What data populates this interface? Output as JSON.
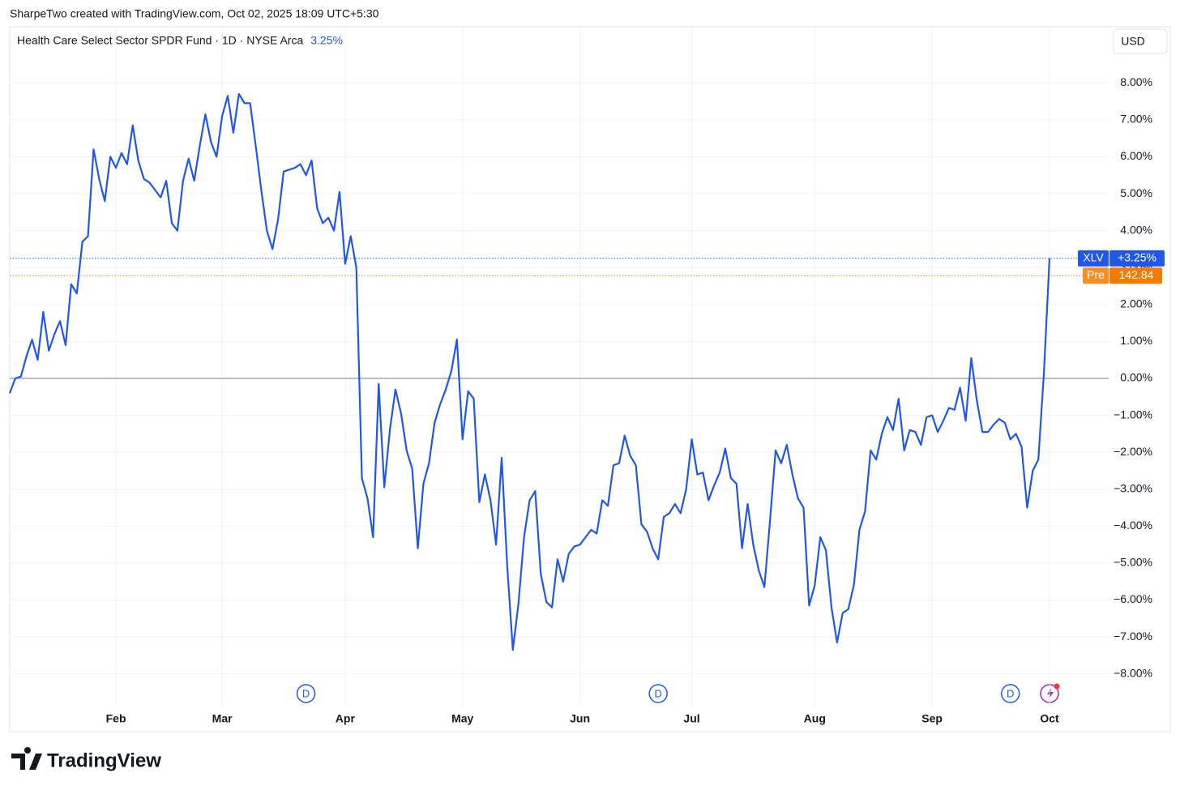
{
  "chart_data": {
    "type": "line",
    "caption": "SharpeTwo created with TradingView.com, Oct 02, 2025 18:09 UTC+5:30",
    "title": "Health Care Select Sector SPDR Fund · 1D · NYSE Arca",
    "change": {
      "value": 3.25,
      "label": "3.25%"
    },
    "currency": "USD",
    "brand": "TradingView",
    "categories": [
      null,
      null,
      null,
      null,
      null,
      null,
      null,
      null,
      null,
      null,
      null,
      null,
      null,
      null,
      null,
      null,
      null,
      null,
      null,
      "Feb",
      null,
      null,
      null,
      null,
      null,
      null,
      null,
      null,
      null,
      null,
      null,
      null,
      null,
      null,
      null,
      null,
      null,
      null,
      "Mar",
      null,
      null,
      null,
      null,
      null,
      null,
      null,
      null,
      null,
      null,
      null,
      null,
      null,
      null,
      null,
      null,
      null,
      null,
      null,
      null,
      null,
      "Apr",
      null,
      null,
      null,
      null,
      null,
      null,
      null,
      null,
      null,
      null,
      null,
      null,
      null,
      null,
      null,
      null,
      null,
      null,
      null,
      null,
      "May",
      null,
      null,
      null,
      null,
      null,
      null,
      null,
      null,
      null,
      null,
      null,
      null,
      null,
      null,
      null,
      null,
      null,
      null,
      null,
      null,
      "Jun",
      null,
      null,
      null,
      null,
      null,
      null,
      null,
      null,
      null,
      null,
      null,
      null,
      null,
      null,
      null,
      null,
      null,
      null,
      null,
      "Jul",
      null,
      null,
      null,
      null,
      null,
      null,
      null,
      null,
      null,
      null,
      null,
      null,
      null,
      null,
      null,
      null,
      null,
      null,
      null,
      null,
      null,
      "Aug",
      null,
      null,
      null,
      null,
      null,
      null,
      null,
      null,
      null,
      null,
      null,
      null,
      null,
      null,
      null,
      null,
      null,
      null,
      null,
      null,
      "Sep",
      null,
      null,
      null,
      null,
      null,
      null,
      null,
      null,
      null,
      null,
      null,
      null,
      null,
      null,
      null,
      null,
      null,
      null,
      null,
      null,
      "Oct"
    ],
    "series": [
      {
        "name": "XLV",
        "color": "#2157e6",
        "values": [
          -0.4,
          0.0,
          0.05,
          0.6,
          1.05,
          0.5,
          1.8,
          0.75,
          1.2,
          1.55,
          0.9,
          2.55,
          2.3,
          3.7,
          3.85,
          6.2,
          5.4,
          4.8,
          6.0,
          5.7,
          6.1,
          5.8,
          6.85,
          5.9,
          5.4,
          5.3,
          5.1,
          4.9,
          5.35,
          4.2,
          4.0,
          5.35,
          5.95,
          5.35,
          6.3,
          7.15,
          6.4,
          6.0,
          7.1,
          7.65,
          6.65,
          7.7,
          7.45,
          7.45,
          6.3,
          5.1,
          4.0,
          3.5,
          4.3,
          5.6,
          5.65,
          5.7,
          5.8,
          5.5,
          5.9,
          4.6,
          4.2,
          4.35,
          4.0,
          5.05,
          3.1,
          3.85,
          3.0,
          -2.7,
          -3.25,
          -4.3,
          -0.15,
          -2.95,
          -1.4,
          -0.3,
          -0.95,
          -1.95,
          -2.45,
          -4.6,
          -2.85,
          -2.3,
          -1.2,
          -0.7,
          -0.3,
          0.2,
          1.05,
          -1.65,
          -0.35,
          -0.55,
          -3.35,
          -2.6,
          -3.3,
          -4.5,
          -2.15,
          -5.1,
          -7.35,
          -6.1,
          -4.3,
          -3.3,
          -3.05,
          -5.3,
          -6.05,
          -6.2,
          -4.9,
          -5.5,
          -4.75,
          -4.55,
          -4.5,
          -4.3,
          -4.1,
          -4.2,
          -3.3,
          -3.45,
          -2.35,
          -2.3,
          -1.55,
          -2.1,
          -2.35,
          -3.95,
          -4.15,
          -4.6,
          -4.9,
          -3.75,
          -3.65,
          -3.4,
          -3.65,
          -3.0,
          -1.65,
          -2.6,
          -2.55,
          -3.3,
          -2.9,
          -2.55,
          -1.9,
          -2.7,
          -2.85,
          -4.6,
          -3.4,
          -4.5,
          -5.2,
          -5.65,
          -3.85,
          -1.95,
          -2.3,
          -1.8,
          -2.6,
          -3.25,
          -3.5,
          -6.15,
          -5.6,
          -4.3,
          -4.65,
          -6.2,
          -7.15,
          -6.35,
          -6.25,
          -5.6,
          -4.1,
          -3.6,
          -1.95,
          -2.2,
          -1.5,
          -1.05,
          -1.4,
          -0.55,
          -1.95,
          -1.4,
          -1.45,
          -1.8,
          -1.05,
          -1.0,
          -1.45,
          -1.15,
          -0.8,
          -0.85,
          -0.25,
          -1.15,
          0.55,
          -0.6,
          -1.45,
          -1.45,
          -1.25,
          -1.1,
          -1.2,
          -1.65,
          -1.5,
          -1.85,
          -3.5,
          -2.5,
          -2.2,
          0.15,
          3.25
        ],
        "last_value_label": {
          "value": 3.25,
          "label": "+3.25%"
        }
      }
    ],
    "pre_market": {
      "name": "Pre",
      "color": "#f57c00",
      "price_label": "142.84",
      "pct_change": 2.78
    },
    "events": [
      {
        "label": "D",
        "index": 53
      },
      {
        "label": "D",
        "index": 116
      },
      {
        "label": "D",
        "index": 179
      }
    ],
    "baseline": 0,
    "ylim": [
      -8.84,
      9.52
    ],
    "yticks": [
      {
        "value": 8,
        "label": "8.00%"
      },
      {
        "value": 7,
        "label": "7.00%"
      },
      {
        "value": 6,
        "label": "6.00%"
      },
      {
        "value": 5,
        "label": "5.00%"
      },
      {
        "value": 4,
        "label": "4.00%"
      },
      {
        "value": 3,
        "label": "3.00%"
      },
      {
        "value": 2,
        "label": "2.00%"
      },
      {
        "value": 1,
        "label": "1.00%"
      },
      {
        "value": 0,
        "label": "0.00%"
      },
      {
        "value": -1,
        "label": "−1.00%"
      },
      {
        "value": -2,
        "label": "−2.00%"
      },
      {
        "value": -3,
        "label": "−3.00%"
      },
      {
        "value": -4,
        "label": "−4.00%"
      },
      {
        "value": -5,
        "label": "−5.00%"
      },
      {
        "value": -6,
        "label": "−6.00%"
      },
      {
        "value": -7,
        "label": "−7.00%"
      },
      {
        "value": -8,
        "label": "−8.00%"
      }
    ],
    "grid": true
  }
}
